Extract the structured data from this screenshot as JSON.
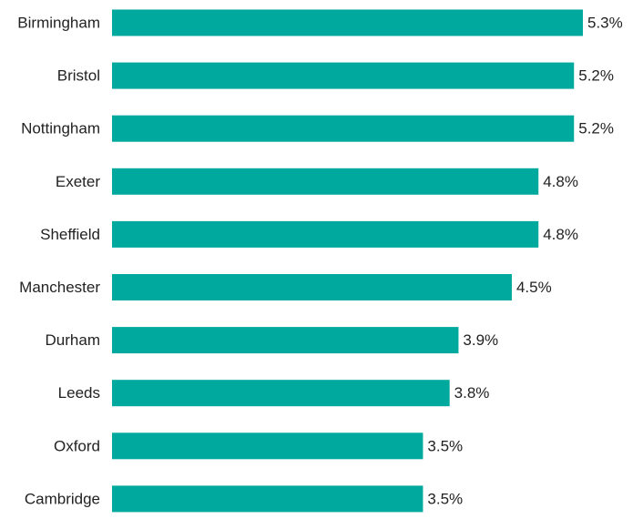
{
  "chart_data": {
    "type": "bar",
    "orientation": "horizontal",
    "categories": [
      "Birmingham",
      "Bristol",
      "Nottingham",
      "Exeter",
      "Sheffield",
      "Manchester",
      "Durham",
      "Leeds",
      "Oxford",
      "Cambridge"
    ],
    "values": [
      5.3,
      5.2,
      5.2,
      4.8,
      4.8,
      4.5,
      3.9,
      3.8,
      3.5,
      3.5
    ],
    "data_labels": [
      "5.3%",
      "5.2%",
      "5.2%",
      "4.8%",
      "4.8%",
      "4.5%",
      "3.9%",
      "3.8%",
      "3.5%",
      "3.5%"
    ],
    "value_unit": "%",
    "title": "",
    "xlabel": "",
    "ylabel": "",
    "xlim": [
      0,
      5.3
    ],
    "grid": false,
    "legend": "none",
    "bar_color": "#00A99D"
  }
}
